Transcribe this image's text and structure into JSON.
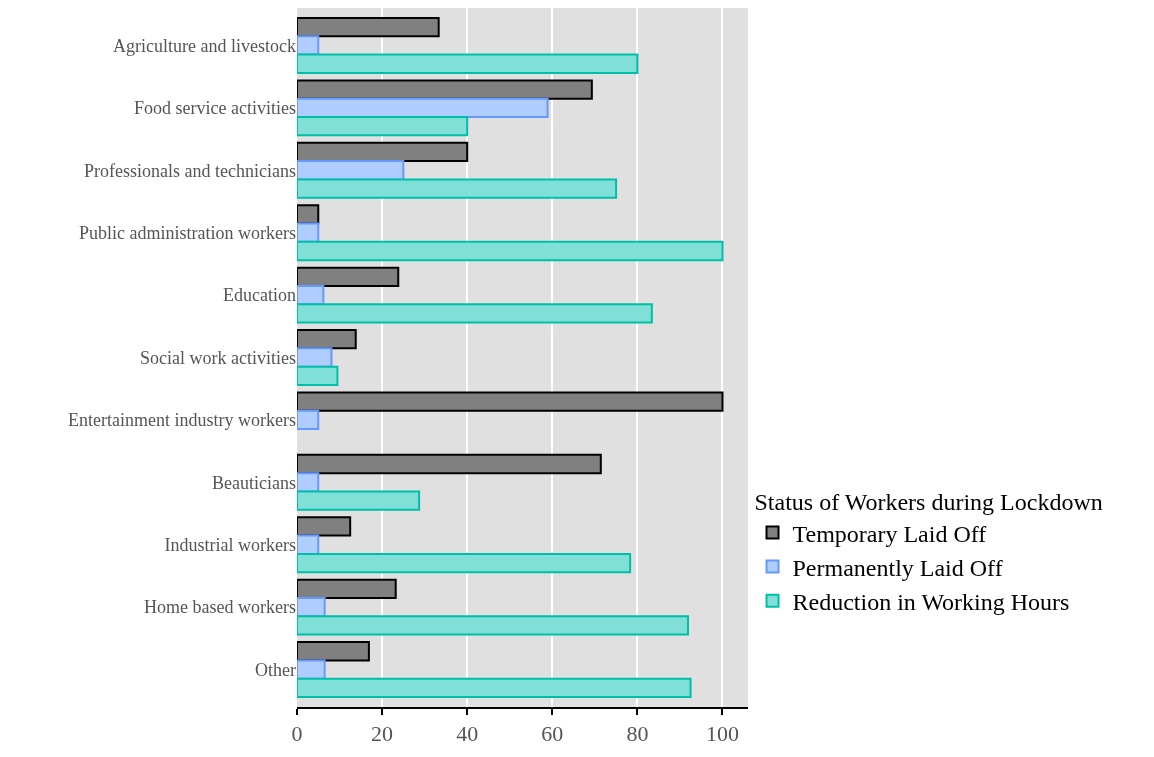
{
  "chart_data": {
    "type": "bar",
    "orientation": "horizontal",
    "categories": [
      "Agriculture and livestock",
      "Food service activities",
      "Professionals and technicians",
      "Public administration workers",
      "Education",
      "Social work activities",
      "Entertainment industry workers",
      "Beauticians",
      "Industrial workers",
      "Home based workers",
      "Other"
    ],
    "series": [
      {
        "name": "Temporary Laid Off",
        "color": "#808080",
        "values": [
          33.3,
          69.3,
          40,
          5,
          23.8,
          13.8,
          100,
          71.4,
          12.5,
          23.2,
          16.9
        ]
      },
      {
        "name": "Permanently Laid Off",
        "color": "#b0cdff",
        "values": [
          5,
          58.9,
          25,
          5,
          6.2,
          8.1,
          5,
          5,
          5,
          6.5,
          6.5
        ]
      },
      {
        "name": "Reduction in Working Hours",
        "color": "#80e0d8",
        "values": [
          80,
          40,
          75,
          100,
          83.4,
          9.5,
          null,
          28.7,
          78.3,
          91.9,
          92.5
        ]
      }
    ],
    "xlim": [
      0,
      106
    ],
    "xticks": [
      0,
      20,
      40,
      60,
      80,
      100
    ],
    "legend_title": "Status of Workers during Lockdown",
    "legend": "right",
    "grid": "x"
  }
}
